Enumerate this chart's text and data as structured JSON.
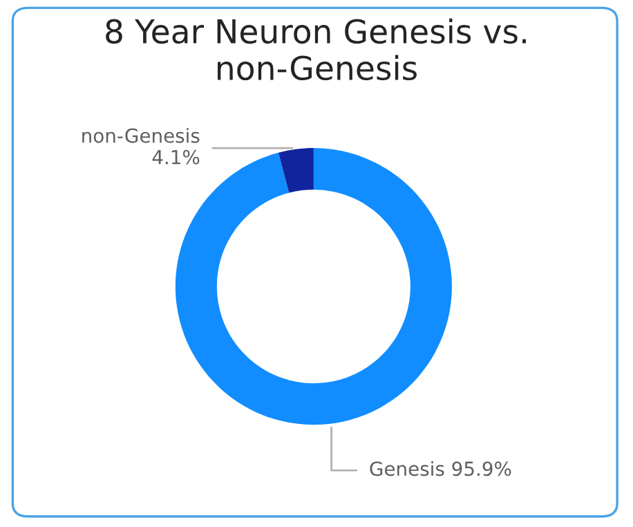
{
  "chart_data": {
    "type": "donut",
    "title": "8 Year Neuron Genesis vs. non-Genesis",
    "categories": [
      "Genesis",
      "non-Genesis"
    ],
    "values": [
      95.9,
      4.1
    ],
    "colors": [
      "#118dff",
      "#12239e"
    ],
    "value_labels": [
      "95.9%",
      "4.1%"
    ]
  }
}
